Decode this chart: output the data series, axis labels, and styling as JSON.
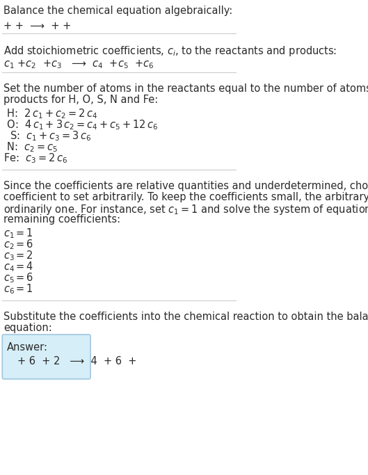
{
  "bg_color": "#ffffff",
  "text_color": "#2b2b2b",
  "title": "Balance the chemical equation algebraically:",
  "line1": "+ +  ⟶  + +",
  "section1_label": "Add stoichiometric coefficients, $c_i$, to the reactants and products:",
  "section1_eq": "$c_1$ +$c_2$  +$c_3$   ⟶  $c_4$  +$c_5$  +$c_6$",
  "section2_label": "Set the number of atoms in the reactants equal to the number of atoms in the\nproducts for H, O, S, N and Fe:",
  "equations": [
    " H:  $2\\,c_1 + c_2 = 2\\,c_4$",
    " O:  $4\\,c_1 + 3\\,c_2 = c_4 + c_5 + 12\\,c_6$",
    "  S:  $c_1 + c_3 = 3\\,c_6$",
    " N:  $c_2 = c_5$",
    "Fe:  $c_3 = 2\\,c_6$"
  ],
  "section3_label": "Since the coefficients are relative quantities and underdetermined, choose a\ncoefficient to set arbitrarily. To keep the coefficients small, the arbitrary value is\nordinarily one. For instance, set $c_1 = 1$ and solve the system of equations for the\nremaining coefficients:",
  "coefficients": [
    "$c_1 = 1$",
    "$c_2 = 6$",
    "$c_3 = 2$",
    "$c_4 = 4$",
    "$c_5 = 6$",
    "$c_6 = 1$"
  ],
  "section4_label": "Substitute the coefficients into the chemical reaction to obtain the balanced\nequation:",
  "answer_label": "Answer:",
  "answer_eq": "+ 6  + 2   ⟶  4  + 6  +",
  "answer_box_color": "#d6eef8",
  "answer_box_edge": "#a0c8e0",
  "divider_color": "#cccccc",
  "font_size": 10.5,
  "small_font": 10
}
